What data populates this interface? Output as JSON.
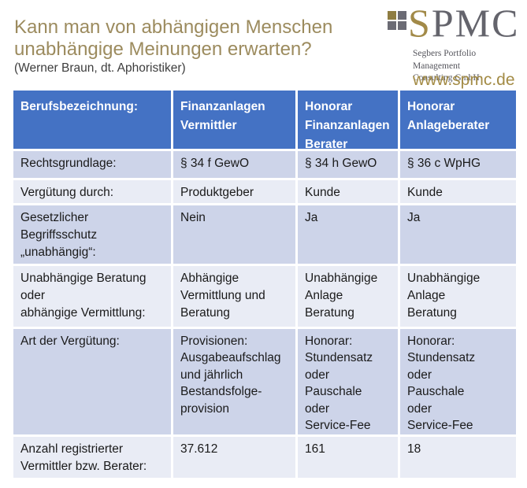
{
  "header": {
    "title": "Kann man von abhängigen Menschen\nunabhängige Meinungen erwarten?",
    "subtitle": "(Werner Braun, dt. Aphoristiker)"
  },
  "logo": {
    "initial": "S",
    "rest": "PMC",
    "tagline": "Segbers Portfolio Management\nConsulting GmbH",
    "website": "www.spmc.de",
    "square_colors": {
      "top_left": "#8f7d42",
      "top_right": "#6b6b74",
      "bottom_left": "#6b6b74",
      "bottom_right": "#6b6b74"
    }
  },
  "colors": {
    "title_gold": "#9c8b5e",
    "website_gold": "#a38b45",
    "brand_s_gold": "#a28a48",
    "brand_gray": "#64646c",
    "table_header_bg": "#4472c4",
    "table_header_text": "#ffffff",
    "row_band_dark": "#cdd4e9",
    "row_band_light": "#e9ecf5",
    "body_text": "#1a1a1a"
  },
  "table": {
    "columns": [
      "Berufsbezeichnung:",
      "Finanzanlagen\nVermittler",
      "Honorar\nFinanzanlagen\nBerater",
      "Honorar\nAnlageberater"
    ],
    "rows": [
      {
        "label": "Rechtsgrundlage:",
        "cells": [
          "§ 34 f GewO",
          "§ 34 h GewO",
          "§ 36 c WpHG"
        ]
      },
      {
        "label": "Vergütung durch:",
        "cells": [
          "Produktgeber",
          "Kunde",
          "Kunde"
        ]
      },
      {
        "label": "Gesetzlicher\nBegriffsschutz\n„unabhängig“:",
        "cells": [
          "Nein",
          "Ja",
          "Ja"
        ]
      },
      {
        "label": "Unabhängige Beratung\noder\nabhängige Vermittlung:",
        "cells": [
          "Abhängige\nVermittlung und\nBeratung",
          "Unabhängige\nAnlage\nBeratung",
          "Unabhängige\nAnlage\nBeratung"
        ]
      },
      {
        "label": "Art der Vergütung:",
        "cells": [
          "Provisionen:\nAusgabeaufschlag\nund jährlich\nBestandsfolge-\nprovision",
          "Honorar:\nStundensatz\noder\nPauschale\noder\nService-Fee",
          "Honorar:\nStundensatz\noder\nPauschale\noder\nService-Fee"
        ]
      },
      {
        "label": "Anzahl registrierter\nVermittler bzw. Berater:",
        "cells": [
          "37.612",
          "161",
          "18"
        ]
      }
    ]
  }
}
